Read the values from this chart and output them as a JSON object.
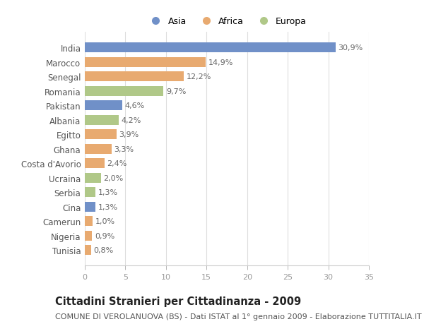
{
  "categories": [
    "India",
    "Marocco",
    "Senegal",
    "Romania",
    "Pakistan",
    "Albania",
    "Egitto",
    "Ghana",
    "Costa d'Avorio",
    "Ucraina",
    "Serbia",
    "Cina",
    "Camerun",
    "Nigeria",
    "Tunisia"
  ],
  "values": [
    30.9,
    14.9,
    12.2,
    9.7,
    4.6,
    4.2,
    3.9,
    3.3,
    2.4,
    2.0,
    1.3,
    1.3,
    1.0,
    0.9,
    0.8
  ],
  "labels": [
    "30,9%",
    "14,9%",
    "12,2%",
    "9,7%",
    "4,6%",
    "4,2%",
    "3,9%",
    "3,3%",
    "2,4%",
    "2,0%",
    "1,3%",
    "1,3%",
    "1,0%",
    "0,9%",
    "0,8%"
  ],
  "continents": [
    "Asia",
    "Africa",
    "Africa",
    "Europa",
    "Asia",
    "Europa",
    "Africa",
    "Africa",
    "Africa",
    "Europa",
    "Europa",
    "Asia",
    "Africa",
    "Africa",
    "Africa"
  ],
  "colors": {
    "Asia": "#7090c8",
    "Africa": "#e8aa70",
    "Europa": "#b0c888"
  },
  "legend_labels": [
    "Asia",
    "Africa",
    "Europa"
  ],
  "xlim": [
    0,
    35
  ],
  "xticks": [
    0,
    5,
    10,
    15,
    20,
    25,
    30,
    35
  ],
  "title": "Cittadini Stranieri per Cittadinanza - 2009",
  "subtitle": "COMUNE DI VEROLANUOVA (BS) - Dati ISTAT al 1° gennaio 2009 - Elaborazione TUTTITALIA.IT",
  "title_fontsize": 10.5,
  "subtitle_fontsize": 8,
  "bg_color": "#ffffff",
  "bar_height": 0.68,
  "grid_color": "#dddddd",
  "label_color": "#666666",
  "ytick_color": "#555555"
}
